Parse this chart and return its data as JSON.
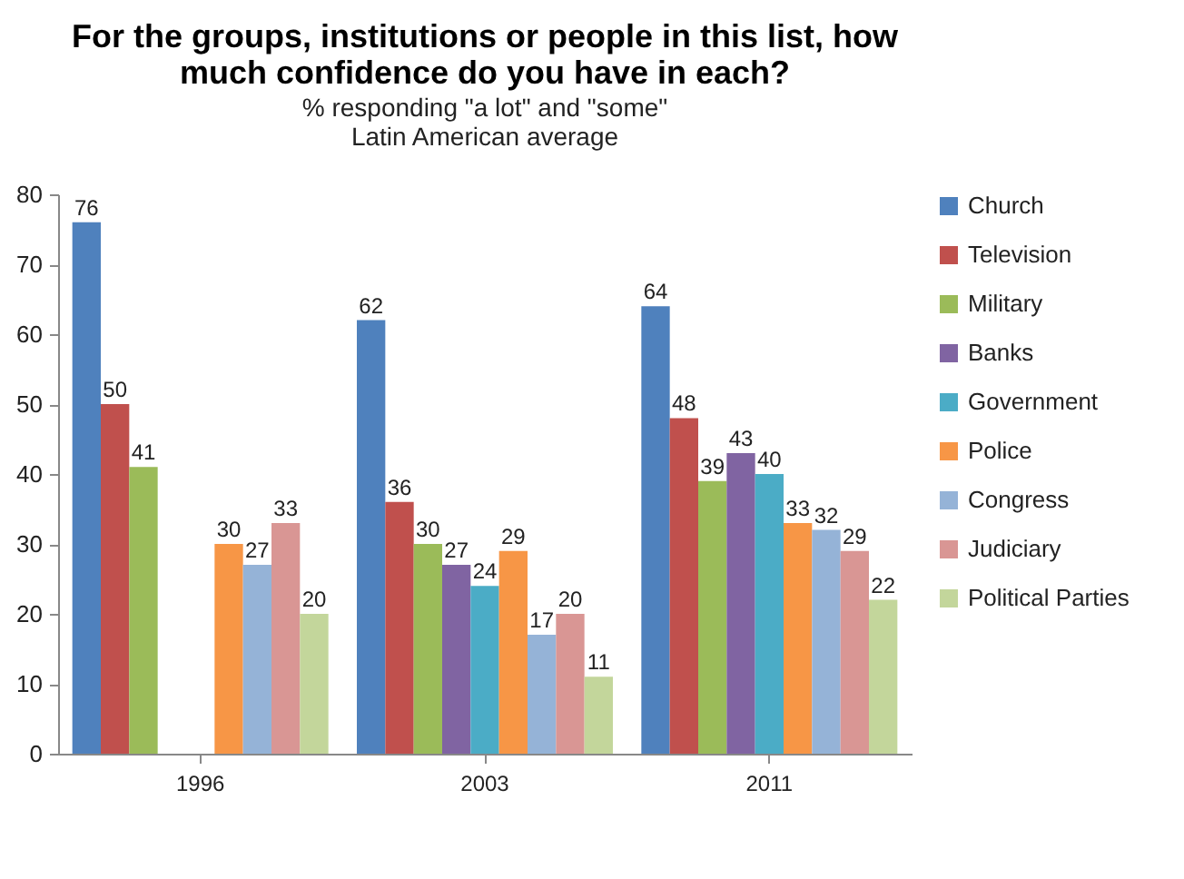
{
  "chart_data": {
    "type": "bar",
    "title": "For the groups, institutions or people in this list, how much confidence do you have in each?",
    "subtitle": "% responding \"a lot\" and \"some\"\nLatin American average",
    "categories": [
      "1996",
      "2003",
      "2011"
    ],
    "series": [
      {
        "name": "Church",
        "color": "#4f81bd",
        "values": [
          76,
          62,
          64
        ]
      },
      {
        "name": "Television",
        "color": "#c0504d",
        "values": [
          50,
          36,
          48
        ]
      },
      {
        "name": "Military",
        "color": "#9bbb59",
        "values": [
          41,
          30,
          39
        ]
      },
      {
        "name": "Banks",
        "color": "#8064a2",
        "values": [
          null,
          27,
          43
        ]
      },
      {
        "name": "Government",
        "color": "#4bacc6",
        "values": [
          null,
          24,
          40
        ]
      },
      {
        "name": "Police",
        "color": "#f79646",
        "values": [
          30,
          29,
          33
        ]
      },
      {
        "name": "Congress",
        "color": "#95b3d7",
        "values": [
          27,
          17,
          32
        ]
      },
      {
        "name": "Judiciary",
        "color": "#d99694",
        "values": [
          33,
          20,
          29
        ]
      },
      {
        "name": "Political Parties",
        "color": "#c3d69b",
        "values": [
          20,
          11,
          22
        ]
      }
    ],
    "ylim": [
      0,
      80
    ],
    "yticks": [
      0,
      10,
      20,
      30,
      40,
      50,
      60,
      70,
      80
    ],
    "grid": false,
    "legend": "right",
    "data_labels": true
  }
}
